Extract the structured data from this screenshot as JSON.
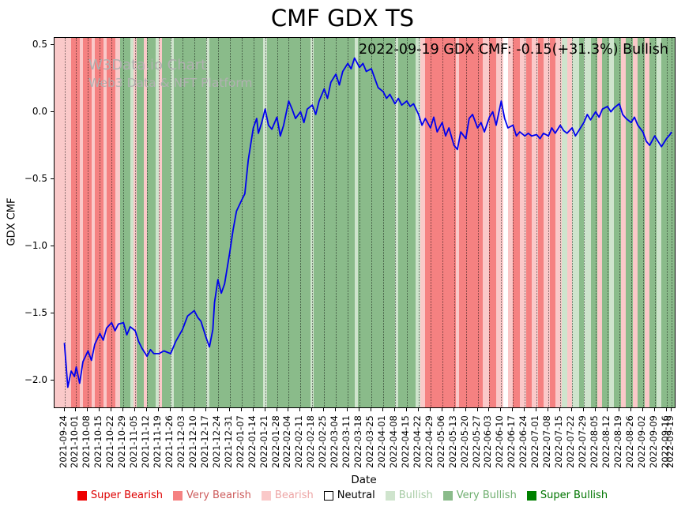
{
  "title": "CMF GDX TS",
  "annotation": "2022-09-19 GDX CMF: -0.15(+31.3%) Bullish",
  "watermark": {
    "line1": "W3Data.io Chart",
    "line2": "Web3 Data & NFT Platform"
  },
  "chart_data": {
    "type": "line",
    "title": "CMF GDX TS",
    "xlabel": "Date",
    "ylabel": "GDX CMF",
    "ylim": [
      -2.2,
      0.55
    ],
    "x_total_days": 364,
    "grid": "vertical dotted",
    "legend_position": "bottom",
    "y_ticks": [
      "0.5",
      "0.0",
      "−0.5",
      "−1.0",
      "−1.5",
      "−2.0"
    ],
    "y_tick_values": [
      0.5,
      0.0,
      -0.5,
      -1.0,
      -1.5,
      -2.0
    ],
    "x_tick_labels": [
      "2021-09-24",
      "2021-10-01",
      "2021-10-08",
      "2021-10-15",
      "2021-10-22",
      "2021-10-29",
      "2021-11-05",
      "2021-11-12",
      "2021-11-19",
      "2021-11-26",
      "2021-12-03",
      "2021-12-10",
      "2021-12-17",
      "2021-12-24",
      "2021-12-31",
      "2022-01-07",
      "2022-01-14",
      "2022-01-21",
      "2022-01-28",
      "2022-02-04",
      "2022-02-11",
      "2022-02-18",
      "2022-02-25",
      "2022-03-04",
      "2022-03-11",
      "2022-03-18",
      "2022-03-25",
      "2022-04-01",
      "2022-04-08",
      "2022-04-15",
      "2022-04-22",
      "2022-04-29",
      "2022-05-06",
      "2022-05-13",
      "2022-05-20",
      "2022-05-27",
      "2022-06-03",
      "2022-06-10",
      "2022-06-17",
      "2022-06-24",
      "2022-07-01",
      "2022-07-08",
      "2022-07-15",
      "2022-07-22",
      "2022-07-29",
      "2022-08-05",
      "2022-08-12",
      "2022-08-19",
      "2022-08-26",
      "2022-09-02",
      "2022-09-09",
      "2022-09-16",
      "2022-09-19"
    ],
    "x_tick_days": [
      4,
      11,
      18,
      25,
      32,
      39,
      46,
      53,
      60,
      67,
      74,
      81,
      88,
      95,
      102,
      109,
      116,
      123,
      130,
      137,
      144,
      151,
      158,
      165,
      172,
      179,
      186,
      193,
      200,
      207,
      214,
      221,
      228,
      235,
      242,
      249,
      256,
      263,
      270,
      277,
      284,
      291,
      298,
      305,
      312,
      319,
      326,
      333,
      340,
      347,
      354,
      361,
      364
    ],
    "series": [
      {
        "name": "GDX CMF",
        "color": "#0000ee",
        "points": [
          [
            4,
            -1.72
          ],
          [
            6,
            -2.05
          ],
          [
            8,
            -1.93
          ],
          [
            10,
            -1.97
          ],
          [
            11,
            -1.9
          ],
          [
            13,
            -2.02
          ],
          [
            15,
            -1.86
          ],
          [
            18,
            -1.78
          ],
          [
            20,
            -1.85
          ],
          [
            22,
            -1.73
          ],
          [
            25,
            -1.65
          ],
          [
            27,
            -1.7
          ],
          [
            29,
            -1.61
          ],
          [
            32,
            -1.57
          ],
          [
            34,
            -1.63
          ],
          [
            36,
            -1.58
          ],
          [
            39,
            -1.57
          ],
          [
            41,
            -1.66
          ],
          [
            43,
            -1.6
          ],
          [
            46,
            -1.63
          ],
          [
            48,
            -1.71
          ],
          [
            50,
            -1.76
          ],
          [
            53,
            -1.82
          ],
          [
            55,
            -1.77
          ],
          [
            57,
            -1.8
          ],
          [
            60,
            -1.8
          ],
          [
            63,
            -1.78
          ],
          [
            67,
            -1.8
          ],
          [
            70,
            -1.71
          ],
          [
            74,
            -1.62
          ],
          [
            77,
            -1.52
          ],
          [
            81,
            -1.48
          ],
          [
            83,
            -1.53
          ],
          [
            85,
            -1.56
          ],
          [
            88,
            -1.68
          ],
          [
            90,
            -1.75
          ],
          [
            92,
            -1.62
          ],
          [
            93,
            -1.42
          ],
          [
            95,
            -1.25
          ],
          [
            97,
            -1.35
          ],
          [
            99,
            -1.28
          ],
          [
            102,
            -1.05
          ],
          [
            104,
            -0.88
          ],
          [
            106,
            -0.74
          ],
          [
            109,
            -0.66
          ],
          [
            111,
            -0.61
          ],
          [
            113,
            -0.36
          ],
          [
            116,
            -0.12
          ],
          [
            118,
            -0.05
          ],
          [
            119,
            -0.16
          ],
          [
            121,
            -0.08
          ],
          [
            123,
            0.02
          ],
          [
            125,
            -0.1
          ],
          [
            127,
            -0.13
          ],
          [
            130,
            -0.04
          ],
          [
            132,
            -0.18
          ],
          [
            134,
            -0.1
          ],
          [
            137,
            0.08
          ],
          [
            139,
            0.02
          ],
          [
            141,
            -0.05
          ],
          [
            144,
            0.0
          ],
          [
            146,
            -0.08
          ],
          [
            148,
            0.02
          ],
          [
            151,
            0.05
          ],
          [
            153,
            -0.02
          ],
          [
            155,
            0.08
          ],
          [
            158,
            0.17
          ],
          [
            160,
            0.1
          ],
          [
            162,
            0.22
          ],
          [
            165,
            0.28
          ],
          [
            167,
            0.2
          ],
          [
            169,
            0.3
          ],
          [
            172,
            0.36
          ],
          [
            174,
            0.32
          ],
          [
            176,
            0.4
          ],
          [
            179,
            0.33
          ],
          [
            181,
            0.36
          ],
          [
            183,
            0.3
          ],
          [
            186,
            0.32
          ],
          [
            188,
            0.25
          ],
          [
            190,
            0.18
          ],
          [
            193,
            0.15
          ],
          [
            195,
            0.1
          ],
          [
            197,
            0.13
          ],
          [
            200,
            0.06
          ],
          [
            202,
            0.1
          ],
          [
            204,
            0.05
          ],
          [
            207,
            0.08
          ],
          [
            209,
            0.04
          ],
          [
            211,
            0.06
          ],
          [
            214,
            -0.02
          ],
          [
            216,
            -0.1
          ],
          [
            218,
            -0.05
          ],
          [
            221,
            -0.12
          ],
          [
            223,
            -0.04
          ],
          [
            225,
            -0.15
          ],
          [
            228,
            -0.08
          ],
          [
            230,
            -0.18
          ],
          [
            232,
            -0.12
          ],
          [
            235,
            -0.25
          ],
          [
            237,
            -0.28
          ],
          [
            239,
            -0.15
          ],
          [
            242,
            -0.2
          ],
          [
            244,
            -0.05
          ],
          [
            246,
            -0.02
          ],
          [
            249,
            -0.12
          ],
          [
            251,
            -0.08
          ],
          [
            253,
            -0.15
          ],
          [
            256,
            -0.04
          ],
          [
            258,
            0.0
          ],
          [
            260,
            -0.1
          ],
          [
            263,
            0.08
          ],
          [
            265,
            -0.05
          ],
          [
            267,
            -0.12
          ],
          [
            270,
            -0.1
          ],
          [
            272,
            -0.18
          ],
          [
            274,
            -0.15
          ],
          [
            277,
            -0.18
          ],
          [
            279,
            -0.16
          ],
          [
            281,
            -0.18
          ],
          [
            284,
            -0.17
          ],
          [
            286,
            -0.2
          ],
          [
            288,
            -0.16
          ],
          [
            291,
            -0.18
          ],
          [
            293,
            -0.12
          ],
          [
            295,
            -0.16
          ],
          [
            298,
            -0.1
          ],
          [
            300,
            -0.14
          ],
          [
            302,
            -0.16
          ],
          [
            305,
            -0.12
          ],
          [
            307,
            -0.18
          ],
          [
            309,
            -0.14
          ],
          [
            312,
            -0.08
          ],
          [
            314,
            -0.02
          ],
          [
            316,
            -0.06
          ],
          [
            319,
            0.0
          ],
          [
            321,
            -0.04
          ],
          [
            323,
            0.02
          ],
          [
            326,
            0.04
          ],
          [
            328,
            0.0
          ],
          [
            330,
            0.03
          ],
          [
            333,
            0.06
          ],
          [
            335,
            -0.02
          ],
          [
            337,
            -0.05
          ],
          [
            340,
            -0.08
          ],
          [
            342,
            -0.04
          ],
          [
            344,
            -0.1
          ],
          [
            347,
            -0.15
          ],
          [
            349,
            -0.22
          ],
          [
            351,
            -0.25
          ],
          [
            354,
            -0.18
          ],
          [
            356,
            -0.22
          ],
          [
            358,
            -0.26
          ],
          [
            361,
            -0.2
          ],
          [
            363,
            -0.17
          ],
          [
            364,
            -0.15
          ]
        ]
      }
    ],
    "band_colors": {
      "super_bearish": "#fe0000",
      "very_bearish": "#f58181",
      "bearish": "#fac9c9",
      "neutral": "#ffffff",
      "bullish": "#cfe4cd",
      "very_bullish": "#8abb8a",
      "super_bullish": "#008000"
    },
    "bands": [
      {
        "start": 0,
        "end": 8,
        "category": "bearish"
      },
      {
        "start": 8,
        "end": 13,
        "category": "very_bearish"
      },
      {
        "start": 13,
        "end": 15,
        "category": "bearish"
      },
      {
        "start": 15,
        "end": 20,
        "category": "very_bearish"
      },
      {
        "start": 20,
        "end": 22,
        "category": "bearish"
      },
      {
        "start": 22,
        "end": 27,
        "category": "very_bearish"
      },
      {
        "start": 27,
        "end": 29,
        "category": "bearish"
      },
      {
        "start": 29,
        "end": 34,
        "category": "very_bearish"
      },
      {
        "start": 34,
        "end": 37,
        "category": "bearish"
      },
      {
        "start": 37,
        "end": 43,
        "category": "very_bullish"
      },
      {
        "start": 43,
        "end": 45,
        "category": "bullish"
      },
      {
        "start": 45,
        "end": 47,
        "category": "bearish"
      },
      {
        "start": 47,
        "end": 51,
        "category": "very_bullish"
      },
      {
        "start": 51,
        "end": 53,
        "category": "bearish"
      },
      {
        "start": 53,
        "end": 58,
        "category": "very_bullish"
      },
      {
        "start": 58,
        "end": 60,
        "category": "bullish"
      },
      {
        "start": 60,
        "end": 62,
        "category": "bearish"
      },
      {
        "start": 62,
        "end": 67,
        "category": "very_bullish"
      },
      {
        "start": 67,
        "end": 69,
        "category": "bullish"
      },
      {
        "start": 69,
        "end": 88,
        "category": "very_bullish"
      },
      {
        "start": 88,
        "end": 90,
        "category": "bullish"
      },
      {
        "start": 90,
        "end": 122,
        "category": "very_bullish"
      },
      {
        "start": 122,
        "end": 124,
        "category": "bullish"
      },
      {
        "start": 124,
        "end": 150,
        "category": "very_bullish"
      },
      {
        "start": 150,
        "end": 152,
        "category": "bullish"
      },
      {
        "start": 152,
        "end": 176,
        "category": "very_bullish"
      },
      {
        "start": 176,
        "end": 178,
        "category": "bullish"
      },
      {
        "start": 178,
        "end": 200,
        "category": "very_bullish"
      },
      {
        "start": 200,
        "end": 202,
        "category": "bullish"
      },
      {
        "start": 202,
        "end": 212,
        "category": "very_bullish"
      },
      {
        "start": 212,
        "end": 215,
        "category": "bullish"
      },
      {
        "start": 215,
        "end": 218,
        "category": "bearish"
      },
      {
        "start": 218,
        "end": 236,
        "category": "very_bearish"
      },
      {
        "start": 236,
        "end": 238,
        "category": "bearish"
      },
      {
        "start": 238,
        "end": 252,
        "category": "very_bearish"
      },
      {
        "start": 252,
        "end": 256,
        "category": "bearish"
      },
      {
        "start": 256,
        "end": 260,
        "category": "very_bearish"
      },
      {
        "start": 260,
        "end": 264,
        "category": "bearish"
      },
      {
        "start": 264,
        "end": 267,
        "category": "neutral"
      },
      {
        "start": 267,
        "end": 270,
        "category": "bearish"
      },
      {
        "start": 270,
        "end": 274,
        "category": "very_bearish"
      },
      {
        "start": 274,
        "end": 278,
        "category": "bearish"
      },
      {
        "start": 278,
        "end": 281,
        "category": "very_bearish"
      },
      {
        "start": 281,
        "end": 285,
        "category": "bearish"
      },
      {
        "start": 285,
        "end": 288,
        "category": "very_bearish"
      },
      {
        "start": 288,
        "end": 292,
        "category": "bearish"
      },
      {
        "start": 292,
        "end": 295,
        "category": "very_bearish"
      },
      {
        "start": 295,
        "end": 299,
        "category": "bearish"
      },
      {
        "start": 299,
        "end": 302,
        "category": "bullish"
      },
      {
        "start": 302,
        "end": 305,
        "category": "bearish"
      },
      {
        "start": 305,
        "end": 309,
        "category": "bullish"
      },
      {
        "start": 309,
        "end": 312,
        "category": "very_bullish"
      },
      {
        "start": 312,
        "end": 316,
        "category": "bullish"
      },
      {
        "start": 316,
        "end": 320,
        "category": "very_bullish"
      },
      {
        "start": 320,
        "end": 323,
        "category": "bearish"
      },
      {
        "start": 323,
        "end": 327,
        "category": "very_bullish"
      },
      {
        "start": 327,
        "end": 330,
        "category": "bullish"
      },
      {
        "start": 330,
        "end": 334,
        "category": "very_bullish"
      },
      {
        "start": 334,
        "end": 337,
        "category": "bearish"
      },
      {
        "start": 337,
        "end": 341,
        "category": "very_bullish"
      },
      {
        "start": 341,
        "end": 344,
        "category": "bearish"
      },
      {
        "start": 344,
        "end": 348,
        "category": "very_bullish"
      },
      {
        "start": 348,
        "end": 351,
        "category": "bearish"
      },
      {
        "start": 351,
        "end": 355,
        "category": "very_bullish"
      },
      {
        "start": 355,
        "end": 358,
        "category": "bullish"
      },
      {
        "start": 358,
        "end": 364,
        "category": "very_bullish"
      }
    ],
    "legend": [
      {
        "label": "Super Bearish",
        "swatch": "#ee0000",
        "text_color": "#dd0000",
        "border": "none"
      },
      {
        "label": "Very Bearish",
        "swatch": "#f58181",
        "text_color": "#cd5c5c",
        "border": "none"
      },
      {
        "label": "Bearish",
        "swatch": "#fac9c9",
        "text_color": "#eda4a4",
        "border": "none"
      },
      {
        "label": "Neutral",
        "swatch": "#ffffff",
        "text_color": "#000000",
        "border": "#000000"
      },
      {
        "label": "Bullish",
        "swatch": "#cfe4cd",
        "text_color": "#a6cba4",
        "border": "none"
      },
      {
        "label": "Very Bullish",
        "swatch": "#8abb8a",
        "text_color": "#6fae6f",
        "border": "none"
      },
      {
        "label": "Super Bullish",
        "swatch": "#008000",
        "text_color": "#007500",
        "border": "none"
      }
    ]
  }
}
